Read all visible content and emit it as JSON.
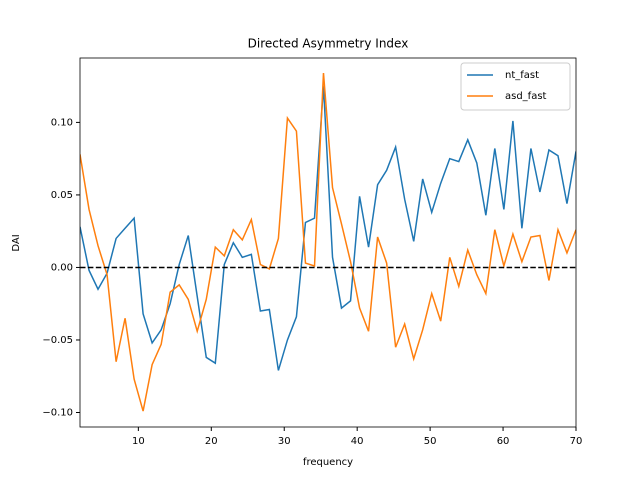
{
  "chart_data": {
    "type": "line",
    "title": "Directed Asymmetry Index",
    "xlabel": "frequency",
    "ylabel": "DAI",
    "x": [
      2.0,
      3.24,
      4.47,
      5.71,
      6.95,
      8.18,
      9.42,
      10.65,
      11.89,
      13.13,
      14.36,
      15.6,
      16.84,
      18.07,
      19.31,
      20.55,
      21.78,
      23.02,
      24.25,
      25.49,
      26.73,
      27.96,
      29.2,
      30.44,
      31.67,
      32.91,
      34.15,
      35.38,
      36.62,
      37.85,
      39.09,
      40.33,
      41.56,
      42.8,
      44.04,
      45.27,
      46.51,
      47.75,
      48.98,
      50.22,
      51.45,
      52.69,
      53.93,
      55.16,
      56.4,
      57.64,
      58.87,
      60.11,
      61.35,
      62.58,
      63.82,
      65.05,
      66.29,
      67.53,
      68.76,
      70.0
    ],
    "series": [
      {
        "name": "nt_fast",
        "color": "#1f77b4",
        "values": [
          0.028,
          -0.002,
          -0.015,
          -0.004,
          0.02,
          0.027,
          0.034,
          -0.032,
          -0.052,
          -0.043,
          -0.025,
          0.002,
          0.022,
          -0.02,
          -0.062,
          -0.066,
          0.002,
          0.017,
          0.007,
          0.009,
          -0.03,
          -0.029,
          -0.071,
          -0.05,
          -0.034,
          0.031,
          0.034,
          0.125,
          0.007,
          -0.028,
          -0.023,
          0.049,
          0.014,
          0.057,
          0.067,
          0.083,
          0.047,
          0.018,
          0.061,
          0.038,
          0.058,
          0.075,
          0.073,
          0.088,
          0.072,
          0.036,
          0.082,
          0.04,
          0.101,
          0.027,
          0.082,
          0.052,
          0.081,
          0.077,
          0.044,
          0.08
        ]
      },
      {
        "name": "asd_fast",
        "color": "#ff7f0e",
        "values": [
          0.078,
          0.04,
          0.015,
          -0.005,
          -0.065,
          -0.035,
          -0.077,
          -0.099,
          -0.067,
          -0.053,
          -0.017,
          -0.012,
          -0.022,
          -0.044,
          -0.022,
          0.014,
          0.008,
          0.026,
          0.019,
          0.033,
          0.002,
          -0.001,
          0.02,
          0.103,
          0.094,
          0.003,
          0.001,
          0.134,
          0.055,
          0.03,
          0.004,
          -0.028,
          -0.044,
          0.021,
          0.003,
          -0.055,
          -0.039,
          -0.063,
          -0.043,
          -0.018,
          -0.037,
          0.007,
          -0.013,
          0.012,
          -0.005,
          -0.018,
          0.026,
          0.001,
          0.023,
          0.004,
          0.021,
          0.022,
          -0.009,
          0.026,
          0.01,
          0.026
        ]
      }
    ],
    "hline": {
      "value": 0,
      "color": "#000000"
    },
    "xlim": [
      2,
      70
    ],
    "xticks": [
      10,
      20,
      30,
      40,
      50,
      60,
      70
    ],
    "ylim": [
      -0.11,
      0.1444
    ],
    "yticks": [
      {
        "value": -0.1,
        "label": "−0.10"
      },
      {
        "value": -0.05,
        "label": "−0.05"
      },
      {
        "value": 0,
        "label": "0.00"
      },
      {
        "value": 0.05,
        "label": "0.05"
      },
      {
        "value": 0.1,
        "label": "0.10"
      }
    ],
    "legend": "upper right"
  }
}
